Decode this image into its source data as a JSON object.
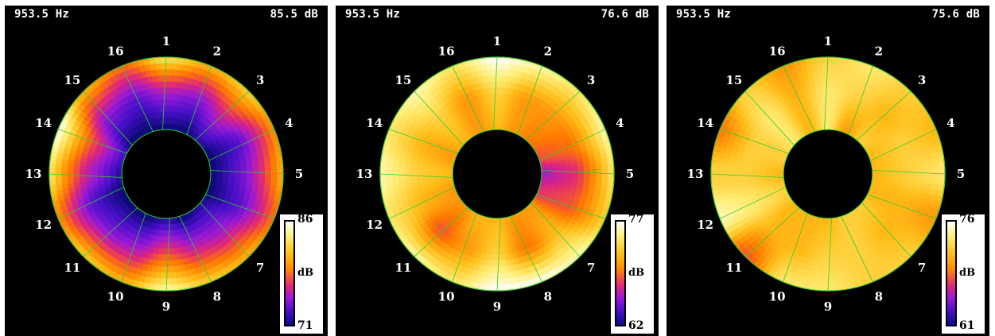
{
  "colors": {
    "background": "#000000",
    "grid": "#2bd02b",
    "text": "#ffffff"
  },
  "chart_data": [
    {
      "type": "heatmap",
      "subtype": "polar-annular",
      "frequency_label": "953.5 Hz",
      "level_label": "85.5 dB",
      "channels": [
        "1",
        "2",
        "3",
        "4",
        "5",
        "6",
        "7",
        "8",
        "9",
        "10",
        "11",
        "12",
        "13",
        "14",
        "15",
        "16"
      ],
      "colorbar": {
        "max": "86",
        "min": "71",
        "unit": "dB",
        "range": [
          71,
          86
        ],
        "colormap": "black-purple-orange-yellow-white"
      },
      "inner_radius_fraction": 0.38,
      "ring_values_outer": [
        84,
        82,
        83,
        81,
        82,
        80,
        82,
        83,
        85,
        82,
        83,
        81,
        84,
        86,
        82,
        80
      ],
      "ring_values_middle": [
        76,
        75,
        77,
        74,
        75,
        74,
        76,
        77,
        79,
        76,
        75,
        74,
        77,
        79,
        75,
        74
      ],
      "ring_values_inner": [
        71,
        71,
        72,
        71,
        71,
        71,
        72,
        71,
        72,
        71,
        71,
        71,
        72,
        73,
        71,
        71
      ]
    },
    {
      "type": "heatmap",
      "subtype": "polar-annular",
      "frequency_label": "953.5 Hz",
      "level_label": "76.6 dB",
      "channels": [
        "1",
        "2",
        "3",
        "4",
        "5",
        "6",
        "7",
        "8",
        "9",
        "10",
        "11",
        "12",
        "13",
        "14",
        "15",
        "16"
      ],
      "colorbar": {
        "max": "77",
        "min": "62",
        "unit": "dB",
        "range": [
          62,
          77
        ],
        "colormap": "black-purple-orange-yellow-white"
      },
      "inner_radius_fraction": 0.38,
      "ring_values_outer": [
        77,
        76,
        75,
        76,
        75,
        74,
        76,
        77,
        77,
        75,
        76,
        75,
        76,
        75,
        76,
        75
      ],
      "ring_values_middle": [
        74,
        72,
        72,
        71,
        69,
        70,
        73,
        71,
        74,
        72,
        70,
        73,
        74,
        73,
        74,
        72
      ],
      "ring_values_inner": [
        73,
        72,
        71,
        70,
        67,
        69,
        72,
        72,
        73,
        73,
        72,
        72,
        73,
        72,
        73,
        72
      ]
    },
    {
      "type": "heatmap",
      "subtype": "polar-annular",
      "frequency_label": "953.5 Hz",
      "level_label": "75.6 dB",
      "channels": [
        "1",
        "2",
        "3",
        "4",
        "5",
        "6",
        "7",
        "8",
        "9",
        "10",
        "11",
        "12",
        "13",
        "14",
        "15",
        "16"
      ],
      "colorbar": {
        "max": "76",
        "min": "61",
        "unit": "dB",
        "range": [
          61,
          76
        ],
        "colormap": "black-purple-orange-yellow-white"
      },
      "inner_radius_fraction": 0.38,
      "ring_values_outer": [
        73,
        74,
        73,
        72,
        74,
        71,
        73,
        73,
        74,
        74,
        69,
        75,
        73,
        70,
        73,
        71
      ],
      "ring_values_middle": [
        74,
        73,
        72,
        73,
        73,
        72,
        72,
        73,
        73,
        72,
        72,
        74,
        73,
        73,
        74,
        72
      ],
      "ring_values_inner": [
        74,
        71,
        73,
        72,
        72,
        72,
        73,
        73,
        72,
        72,
        72,
        73,
        72,
        73,
        74,
        72
      ]
    }
  ]
}
